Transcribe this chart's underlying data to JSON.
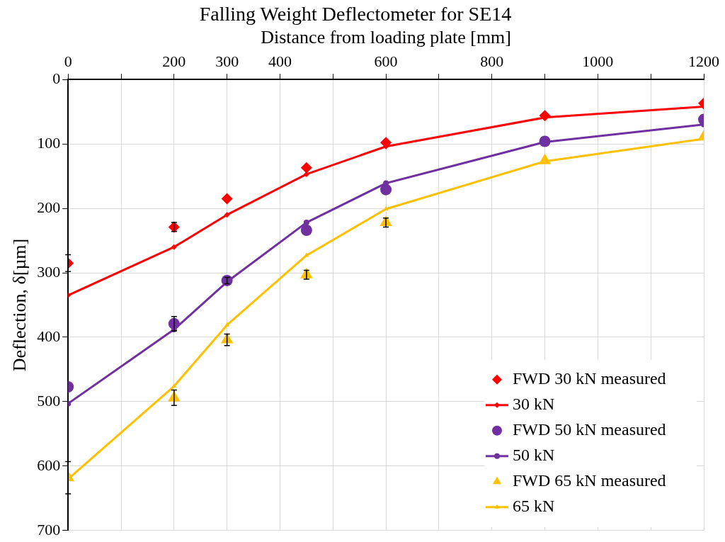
{
  "chart_data": {
    "type": "line",
    "title": "Falling Weight Deflectometer for SE14",
    "xlabel": "Distance from loading plate [mm]",
    "ylabel": "Deflection, δ[µm]",
    "x": [
      0,
      200,
      300,
      450,
      600,
      900,
      1200
    ],
    "xlim": [
      0,
      1200
    ],
    "xticks": [
      0,
      {
        "value": 100,
        "label": null
      },
      200,
      300,
      400,
      {
        "value": 500,
        "label": null
      },
      600,
      {
        "value": 700,
        "label": null
      },
      800,
      {
        "value": 900,
        "label": null
      },
      1000,
      {
        "value": 1100,
        "label": null
      },
      1200
    ],
    "ylim": [
      700,
      0
    ],
    "yticks": [
      0,
      100,
      200,
      300,
      400,
      500,
      600,
      700
    ],
    "grid": true,
    "legend": "bottom right",
    "series": [
      {
        "name": "FWD 30 kN measured",
        "type": "scatter",
        "marker": "diamond",
        "color": "#ff0000",
        "values": [
          285,
          229,
          185,
          137,
          98,
          56,
          37
        ],
        "errors": [
          13,
          7,
          null,
          null,
          null,
          null,
          null
        ]
      },
      {
        "name": "30 kN",
        "marker": "diamond",
        "color": "#ff0000",
        "values": [
          335,
          260,
          210,
          147,
          104,
          59,
          42
        ]
      },
      {
        "name": "FWD 50 kN measured",
        "type": "scatter",
        "marker": "circle",
        "color": "#7030a0",
        "values": [
          477,
          379,
          312,
          234,
          171,
          96,
          62
        ],
        "errors": [
          null,
          11,
          5,
          null,
          null,
          null,
          null
        ]
      },
      {
        "name": "50 kN",
        "marker": "circle",
        "color": "#7030a0",
        "values": [
          503,
          388,
          314,
          222,
          161,
          97,
          70
        ]
      },
      {
        "name": "FWD 65 kN measured",
        "type": "scatter",
        "marker": "triangle",
        "color": "#ffc000",
        "values": [
          618,
          494,
          404,
          303,
          222,
          126,
          89
        ],
        "errors": [
          25,
          12,
          9,
          7,
          7,
          null,
          null
        ]
      },
      {
        "name": "65 kN",
        "marker": "triangle",
        "color": "#ffc000",
        "values": [
          620,
          476,
          381,
          273,
          201,
          127,
          92
        ]
      }
    ]
  }
}
